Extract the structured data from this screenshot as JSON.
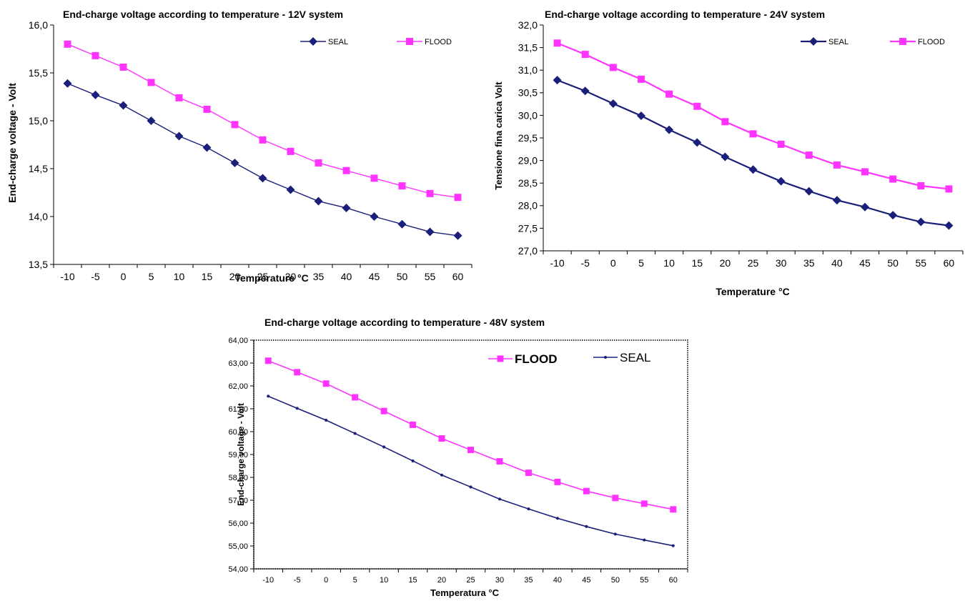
{
  "chart_data": [
    {
      "type": "line",
      "title": "End-charge voltage according to temperature - 12V system",
      "xlabel": "Temperature °C",
      "ylabel": "End-charge voltage - Volt",
      "categories": [
        "-10",
        "-5",
        "0",
        "5",
        "10",
        "15",
        "20",
        "25",
        "30",
        "35",
        "40",
        "45",
        "50",
        "55",
        "60"
      ],
      "ylim": [
        13.5,
        16.0
      ],
      "yticks": [
        "13,5",
        "14,0",
        "14,5",
        "15,0",
        "15,5",
        "16,0"
      ],
      "legend_position": "top-right",
      "grid": false,
      "series": [
        {
          "name": "SEAL",
          "color": "#1a1f7a",
          "marker": "diamond",
          "values": [
            15.39,
            15.27,
            15.16,
            15.0,
            14.84,
            14.72,
            14.56,
            14.4,
            14.28,
            14.16,
            14.09,
            14.0,
            13.92,
            13.84,
            13.8
          ]
        },
        {
          "name": "FLOOD",
          "color": "#ff33ff",
          "marker": "square",
          "values": [
            15.8,
            15.68,
            15.56,
            15.4,
            15.24,
            15.12,
            14.96,
            14.8,
            14.68,
            14.56,
            14.48,
            14.4,
            14.32,
            14.24,
            14.2
          ]
        }
      ]
    },
    {
      "type": "line",
      "title": "End-charge voltage according to temperature - 24V system",
      "xlabel": "Temperature °C",
      "ylabel": "Tensione fina carica Volt",
      "categories": [
        "-10",
        "-5",
        "0",
        "5",
        "10",
        "15",
        "20",
        "25",
        "30",
        "35",
        "40",
        "45",
        "50",
        "55",
        "60"
      ],
      "ylim": [
        27.0,
        32.0
      ],
      "yticks": [
        "27,0",
        "27,5",
        "28,0",
        "28,5",
        "29,0",
        "29,5",
        "30,0",
        "30,5",
        "31,0",
        "31,5",
        "32,0"
      ],
      "legend_position": "top-right",
      "grid": false,
      "series": [
        {
          "name": "SEAL",
          "color": "#1a1f7a",
          "marker": "diamond",
          "values": [
            30.78,
            30.54,
            30.26,
            29.99,
            29.68,
            29.4,
            29.08,
            28.8,
            28.54,
            28.32,
            28.12,
            27.97,
            27.79,
            27.64,
            27.56
          ]
        },
        {
          "name": "FLOOD",
          "color": "#ff33ff",
          "marker": "square",
          "values": [
            31.6,
            31.35,
            31.06,
            30.8,
            30.47,
            30.2,
            29.86,
            29.59,
            29.36,
            29.12,
            28.9,
            28.75,
            28.59,
            28.44,
            28.37
          ]
        }
      ]
    },
    {
      "type": "line",
      "title": "End-charge voltage according to  temperature - 48V system",
      "xlabel": "Temperatura °C",
      "ylabel": "End-charge voltage - Volt",
      "categories": [
        "-10",
        "-5",
        "0",
        "5",
        "10",
        "15",
        "20",
        "25",
        "30",
        "35",
        "40",
        "45",
        "50",
        "55",
        "60"
      ],
      "ylim": [
        54.0,
        64.0
      ],
      "yticks": [
        "54,00",
        "55,00",
        "56,00",
        "57,00",
        "58,00",
        "59,00",
        "60,00",
        "61,00",
        "62,00",
        "63,00",
        "64,00"
      ],
      "legend_position": "top-right",
      "grid": false,
      "series": [
        {
          "name": "FLOOD",
          "color": "#ff33ff",
          "marker": "square",
          "values": [
            63.1,
            62.6,
            62.1,
            61.5,
            60.9,
            60.3,
            59.7,
            59.2,
            58.7,
            58.2,
            57.8,
            57.4,
            57.1,
            56.85,
            56.6
          ]
        },
        {
          "name": "SEAL",
          "color": "#1a1f7a",
          "marker": "dot",
          "values": [
            61.55,
            61.02,
            60.5,
            59.92,
            59.33,
            58.72,
            58.1,
            57.58,
            57.05,
            56.62,
            56.21,
            55.85,
            55.52,
            55.26,
            55.01
          ]
        }
      ]
    }
  ]
}
